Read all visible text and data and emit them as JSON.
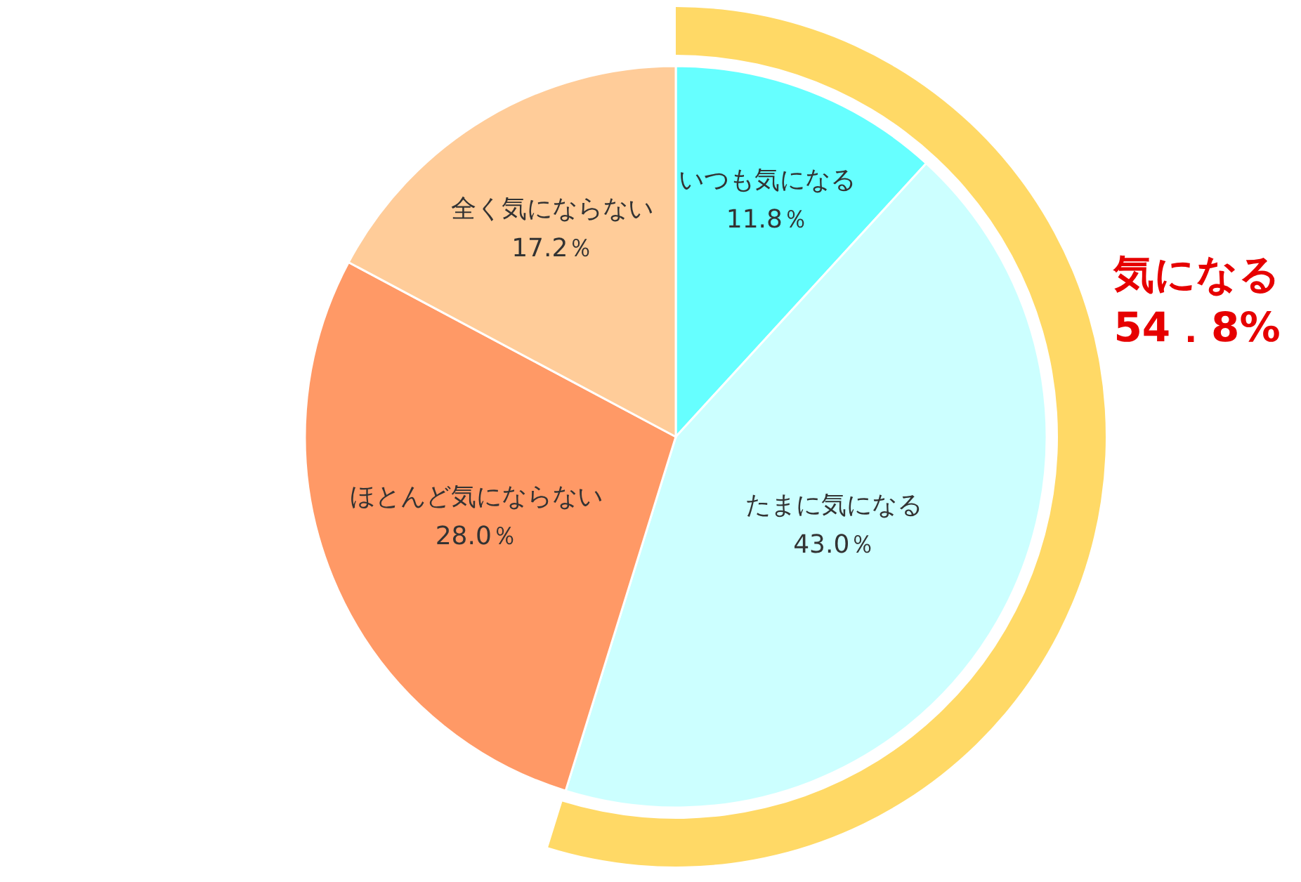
{
  "chart_data": {
    "type": "pie",
    "categories": [
      "いつも気になる",
      "たまに気になる",
      "ほとんど気にならない",
      "全く気にならない"
    ],
    "values": [
      11.8,
      43.0,
      28.0,
      17.2
    ],
    "colors": [
      "#66ffff",
      "#ccffff",
      "#ff9966",
      "#ffcc99"
    ],
    "value_labels": [
      "11.8％",
      "43.0％",
      "28.0％",
      "17.2％"
    ],
    "annotations": [
      "気になる\n54．8%"
    ]
  }
}
